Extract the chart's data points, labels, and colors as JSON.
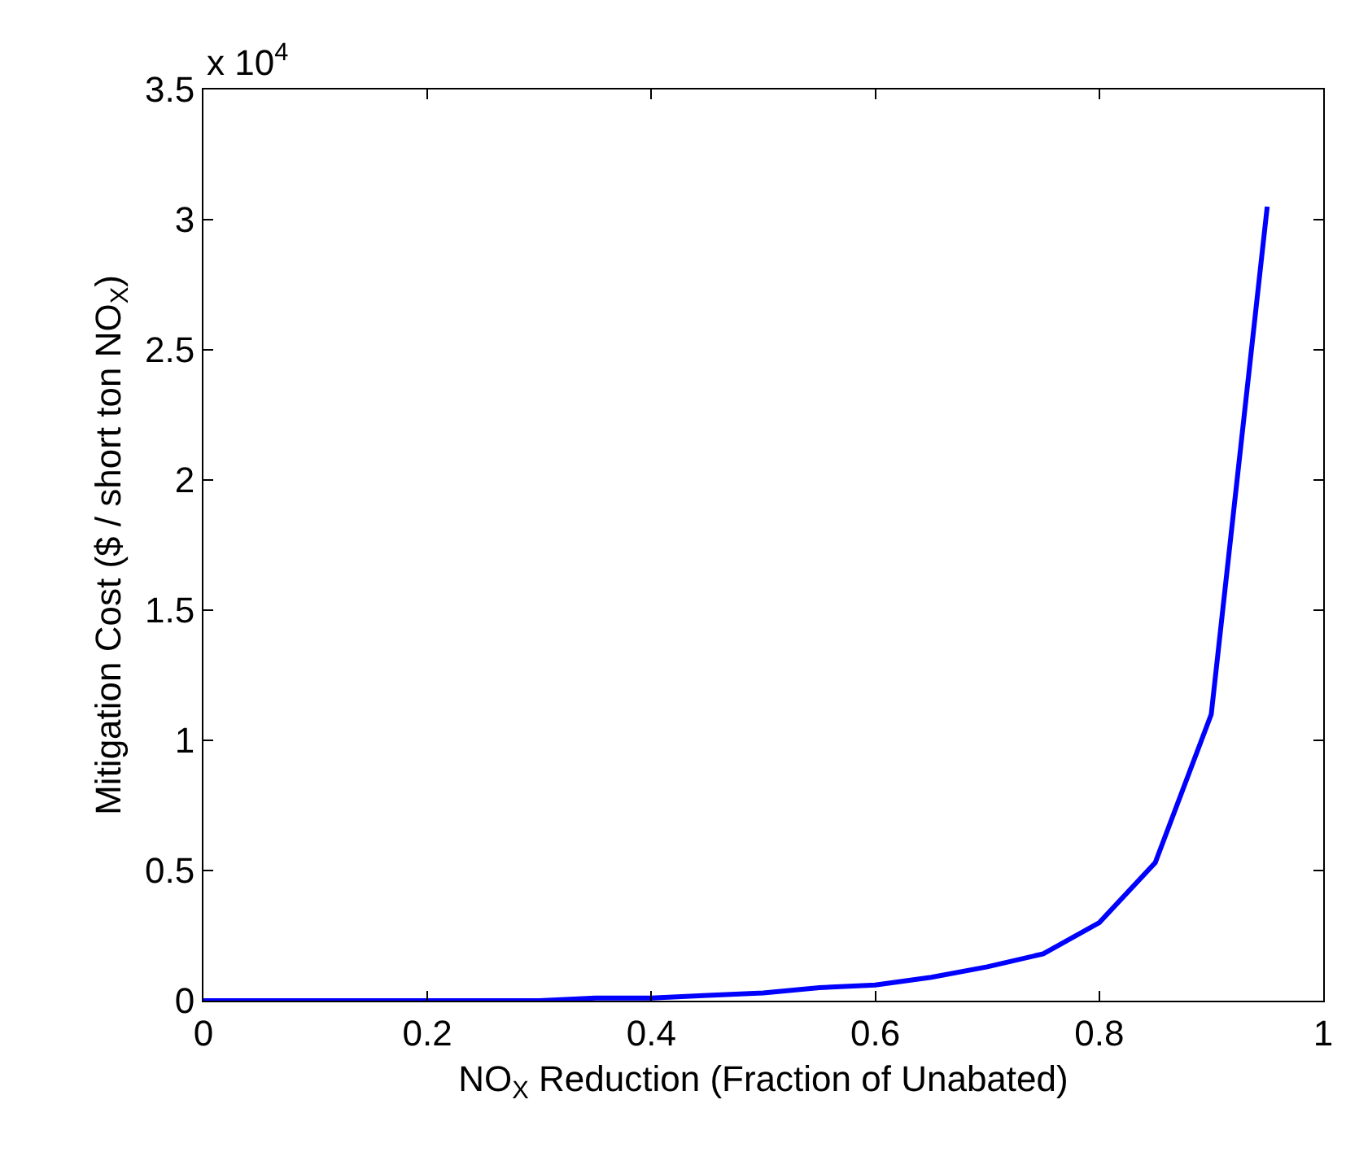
{
  "chart_data": {
    "type": "line",
    "xlabel": "NO$_{X}$ Reduction (Fraction of Unabated)",
    "ylabel": "Mitigation Cost ($ / short ton NO$_{X}$)",
    "annotations": [
      "x 10$^{4}$"
    ],
    "x": [
      0,
      0.05,
      0.1,
      0.15,
      0.2,
      0.25,
      0.3,
      0.35,
      0.4,
      0.45,
      0.5,
      0.55,
      0.6,
      0.65,
      0.7,
      0.75,
      0.8,
      0.85,
      0.9,
      0.95
    ],
    "series": [
      {
        "color": "#0000ff",
        "values": [
          0,
          0,
          0,
          0,
          0,
          0,
          0,
          0.01,
          0.01,
          0.02,
          0.03,
          0.05,
          0.06,
          0.09,
          0.13,
          0.18,
          0.3,
          0.53,
          1.1,
          3.05
        ]
      }
    ],
    "xlim": [
      0,
      1
    ],
    "xticks": [
      0,
      0.2,
      0.4,
      0.6,
      0.8,
      1
    ],
    "ylim": [
      0,
      3.5
    ],
    "yticks": [
      0,
      0.5,
      1,
      1.5,
      2,
      2.5,
      3,
      3.5
    ],
    "marker": "none",
    "line_style": "solid"
  }
}
